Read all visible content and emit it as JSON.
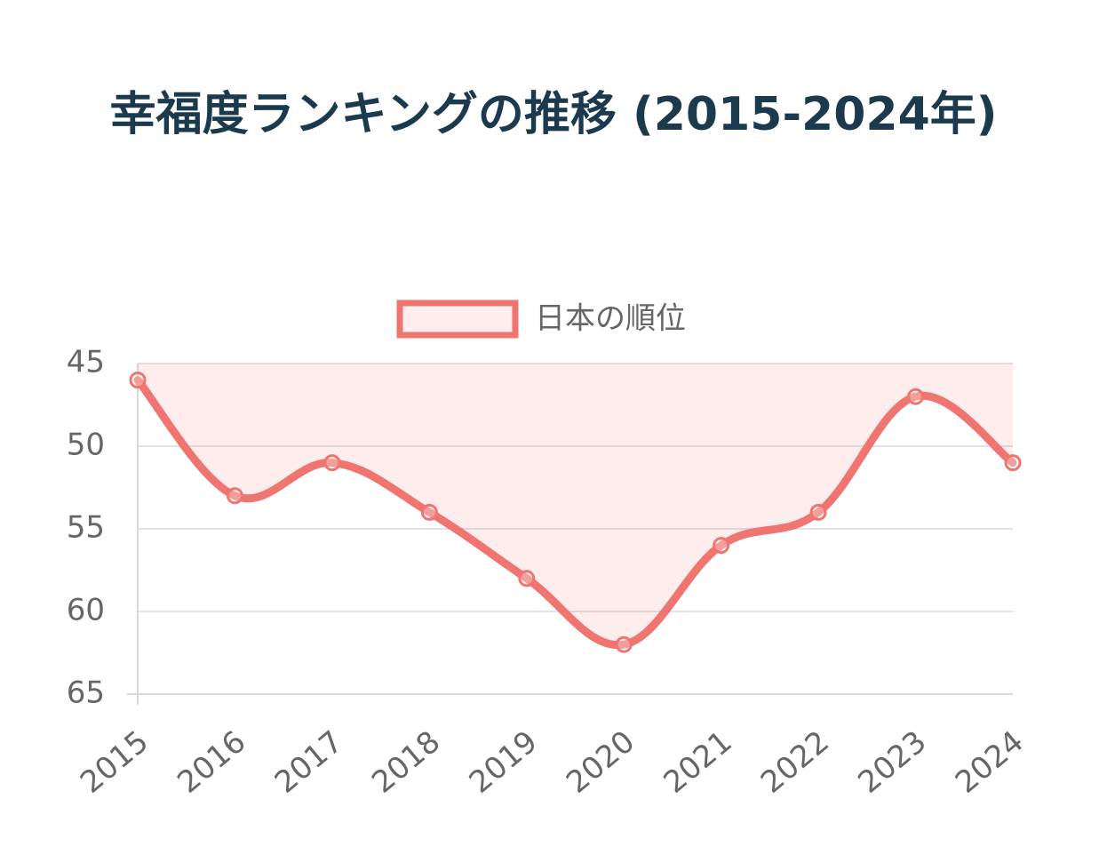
{
  "chart_data": {
    "type": "line",
    "title": "幸福度ランキングの推移 (2015-2024年)",
    "categories": [
      "2015",
      "2016",
      "2017",
      "2018",
      "2019",
      "2020",
      "2021",
      "2022",
      "2023",
      "2024"
    ],
    "series": [
      {
        "name": "日本の順位",
        "color": "#f07470",
        "fill": "rgba(240,116,112,0.13)",
        "values": [
          46,
          53,
          51,
          54,
          58,
          62,
          56,
          54,
          47,
          51
        ]
      }
    ],
    "ylim": [
      45,
      65
    ],
    "yticks": [
      45,
      50,
      55,
      60,
      65
    ],
    "y_reversed": true,
    "grid": true,
    "legend": "top"
  }
}
